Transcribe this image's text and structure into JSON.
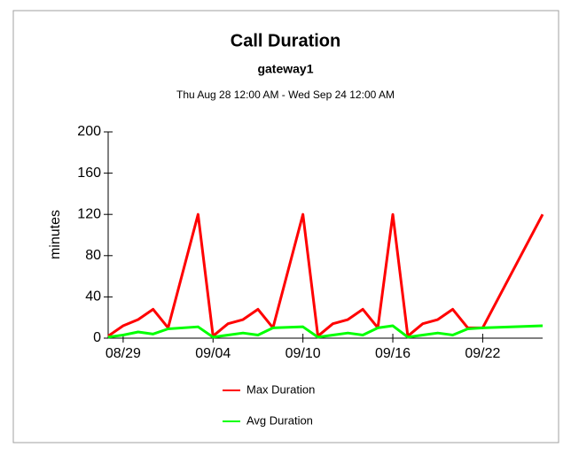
{
  "chart_data": {
    "type": "line",
    "title": "Call Duration",
    "subtitle": "gateway1",
    "date_range": "Thu Aug 28 12:00 AM - Wed Sep 24 12:00 AM",
    "y_label": "minutes",
    "x": [
      0,
      1,
      2,
      3,
      4,
      6,
      7,
      8,
      9,
      10,
      11,
      13,
      14,
      15,
      16,
      17,
      18,
      19,
      20,
      21,
      22,
      23,
      24,
      25,
      29
    ],
    "series": [
      {
        "name": "Max Duration",
        "color": "#ff0000",
        "values": [
          2,
          12,
          18,
          28,
          10,
          120,
          2,
          14,
          18,
          28,
          10,
          120,
          2,
          14,
          18,
          28,
          10,
          120,
          2,
          14,
          18,
          28,
          10,
          10,
          120
        ]
      },
      {
        "name": "Avg Duration",
        "color": "#00ff00",
        "values": [
          1,
          3,
          6,
          4,
          9,
          11,
          1,
          3,
          5,
          3,
          10,
          11,
          1,
          3,
          5,
          3,
          10,
          12,
          1,
          3,
          5,
          3,
          9,
          10,
          12
        ]
      }
    ],
    "xlim": [
      0,
      29
    ],
    "xticks": [
      {
        "value": 1,
        "label": "08/29"
      },
      {
        "value": 7,
        "label": "09/04"
      },
      {
        "value": 13,
        "label": "09/10"
      },
      {
        "value": 19,
        "label": "09/16"
      },
      {
        "value": 25,
        "label": "09/22"
      }
    ],
    "ylim": [
      0,
      200
    ],
    "yticks": [
      0,
      40,
      80,
      120,
      160,
      200
    ]
  }
}
